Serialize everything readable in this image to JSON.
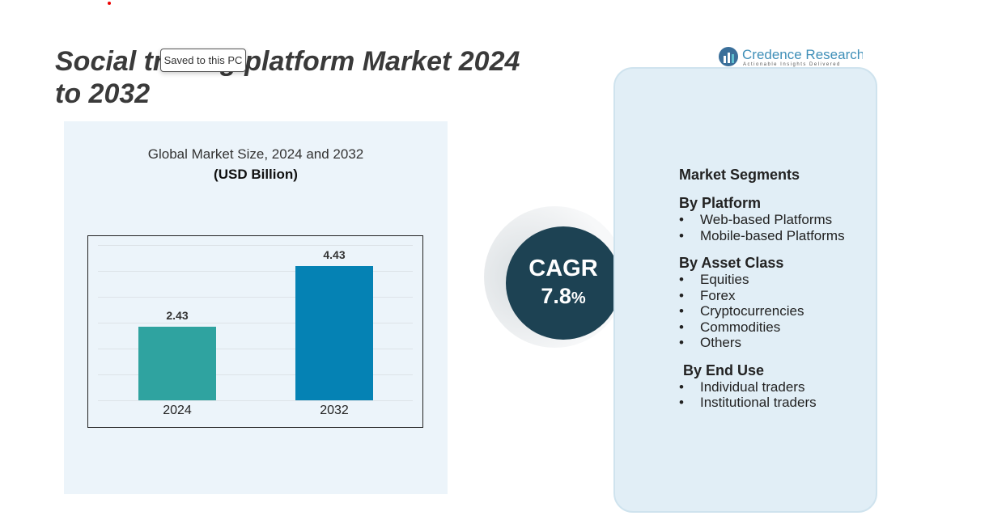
{
  "title": "Social trading platform  Market 2024 to 2032",
  "tooltip": "Saved to this PC",
  "logo": {
    "name": "Credence Research",
    "tagline": "Actionable Insights Delivered"
  },
  "chart_data": {
    "type": "bar",
    "title": "Global Market Size, 2024 and 2032",
    "ylabel": "(USD Billion)",
    "categories": [
      "2024",
      "2032"
    ],
    "values": [
      2.43,
      4.43
    ],
    "data_labels": [
      "2.43",
      "4.43"
    ],
    "colors": [
      "#2fa3a0",
      "#0582b4"
    ],
    "grid": true
  },
  "cagr": {
    "label": "CAGR",
    "value": "7.8",
    "unit": "%"
  },
  "segments": {
    "heading": "Market Segments",
    "groups": [
      {
        "title": "By Platform",
        "items": [
          "Web-based Platforms",
          "Mobile-based Platforms"
        ]
      },
      {
        "title": "By Asset Class",
        "items": [
          "Equities",
          "Forex",
          "Cryptocurrencies",
          "Commodities",
          "Others"
        ]
      },
      {
        "title": "By End Use",
        "items": [
          "Individual traders",
          "Institutional traders"
        ]
      }
    ]
  }
}
